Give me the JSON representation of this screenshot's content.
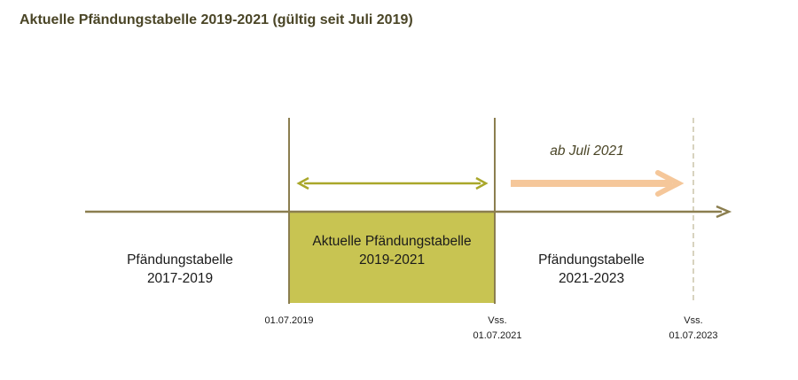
{
  "title": "Aktuelle Pfändungstabelle 2019-2021 (gültig seit Juli 2019)",
  "periods": [
    {
      "line1": "Pfändungstabelle",
      "line2": "2017-2019"
    },
    {
      "line1": "Aktuelle Pfändungstabelle",
      "line2": "2019-2021"
    },
    {
      "line1": "Pfändungstabelle",
      "line2": "2021-2023"
    }
  ],
  "dates": [
    {
      "line1": "",
      "line2": "01.07.2019"
    },
    {
      "line1": "Vss.",
      "line2": "01.07.2021"
    },
    {
      "line1": "Vss.",
      "line2": "01.07.2023"
    }
  ],
  "future_label": "ab Juli 2021",
  "colors": {
    "timeline": "#8b7e4f",
    "current_box": "#c8c452",
    "current_arrow": "#a9a72a",
    "future_arrow": "#f5c79a",
    "future_divider": "#d8d3bf",
    "title": "#4a4526"
  }
}
